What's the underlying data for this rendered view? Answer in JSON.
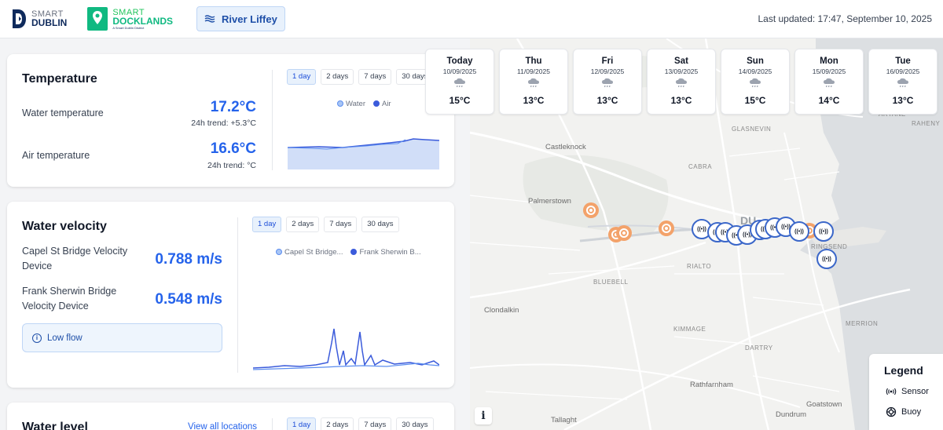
{
  "header": {
    "logo_dublin": {
      "line1": "SMART",
      "line2": "DUBLIN"
    },
    "logo_docklands": {
      "line1": "SMART",
      "line2": "DOCKLANDS",
      "line3": "A Smart Dublin District"
    },
    "river_button": "River Liffey",
    "last_updated": "Last updated: 17:47, September 10, 2025"
  },
  "temperature": {
    "title": "Temperature",
    "tabs": [
      "1 day",
      "2 days",
      "7 days",
      "30 days"
    ],
    "active_tab": "1 day",
    "water_label": "Water temperature",
    "water_value": "17.2°C",
    "water_trend": "24h trend: +5.3°C",
    "air_label": "Air temperature",
    "air_value": "16.6°C",
    "air_trend": "24h trend: °C",
    "legend": [
      "Water",
      "Air"
    ]
  },
  "velocity": {
    "title": "Water velocity",
    "tabs": [
      "1 day",
      "2 days",
      "7 days",
      "30 days"
    ],
    "active_tab": "1 day",
    "capel_label": "Capel St Bridge Velocity Device",
    "capel_value": "0.788 m/s",
    "frank_label": "Frank Sherwin Bridge Velocity Device",
    "frank_value": "0.548 m/s",
    "status": "Low flow",
    "legend": [
      "Capel St Bridge...",
      "Frank Sherwin B..."
    ]
  },
  "level": {
    "title": "Water level",
    "view_all": "View all locations",
    "tabs": [
      "1 day",
      "2 days",
      "7 days",
      "30 days"
    ],
    "active_tab": "1 day"
  },
  "forecast": [
    {
      "day": "Today",
      "date": "10/09/2025",
      "temp": "15°C"
    },
    {
      "day": "Thu",
      "date": "11/09/2025",
      "temp": "13°C"
    },
    {
      "day": "Fri",
      "date": "12/09/2025",
      "temp": "13°C"
    },
    {
      "day": "Sat",
      "date": "13/09/2025",
      "temp": "13°C"
    },
    {
      "day": "Sun",
      "date": "14/09/2025",
      "temp": "15°C"
    },
    {
      "day": "Mon",
      "date": "15/09/2025",
      "temp": "14°C"
    },
    {
      "day": "Tue",
      "date": "16/09/2025",
      "temp": "13°C"
    }
  ],
  "map": {
    "places": [
      "Castleknock",
      "Palmerstown",
      "Clondalkin",
      "Tallaght",
      "Rathfarnham",
      "Dundrum",
      "Goatstown",
      "GLASNEVIN",
      "CABRA",
      "RIALTO",
      "BLUEBELL",
      "KIMMAGE",
      "DARTRY",
      "MERRION",
      "RINGSEND",
      "ARTANE",
      "RAHENY",
      "DU"
    ],
    "legend_title": "Legend",
    "legend_sensor": "Sensor",
    "legend_buoy": "Buoy",
    "info": "i",
    "sensor_glyph": "((•))"
  },
  "colors": {
    "accent": "#2563eb",
    "water": "#5b8def",
    "air": "#3b5bdb",
    "buoy": "#f3a26a"
  }
}
